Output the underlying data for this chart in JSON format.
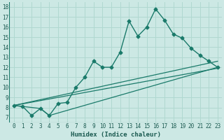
{
  "xlabel": "Humidex (Indice chaleur)",
  "background_color": "#cce8e4",
  "grid_color": "#b0d8d0",
  "line_color": "#1a7a6a",
  "xlim": [
    -0.5,
    23.5
  ],
  "ylim": [
    6.5,
    18.5
  ],
  "xticks": [
    0,
    1,
    2,
    3,
    4,
    5,
    6,
    7,
    8,
    9,
    10,
    11,
    12,
    13,
    14,
    15,
    16,
    17,
    18,
    19,
    20,
    21,
    22,
    23
  ],
  "yticks": [
    7,
    8,
    9,
    10,
    11,
    12,
    13,
    14,
    15,
    16,
    17,
    18
  ],
  "line1_x": [
    0,
    1,
    2,
    3,
    4,
    5,
    6,
    7,
    8,
    9,
    10,
    11,
    12,
    13,
    14,
    15,
    16,
    17,
    18,
    19,
    20,
    21,
    22,
    23
  ],
  "line1_y": [
    8.2,
    8.1,
    7.2,
    7.9,
    7.2,
    8.4,
    8.5,
    10.0,
    11.0,
    12.6,
    12.0,
    12.0,
    13.5,
    16.6,
    15.1,
    16.0,
    17.8,
    16.7,
    15.3,
    14.9,
    13.9,
    13.2,
    12.6,
    12.0
  ],
  "line2_x": [
    0,
    3,
    4,
    23
  ],
  "line2_y": [
    8.2,
    7.9,
    7.2,
    12.0
  ],
  "line3_x": [
    0,
    23
  ],
  "line3_y": [
    8.2,
    11.9
  ],
  "line4_x": [
    0,
    23
  ],
  "line4_y": [
    8.2,
    12.6
  ]
}
